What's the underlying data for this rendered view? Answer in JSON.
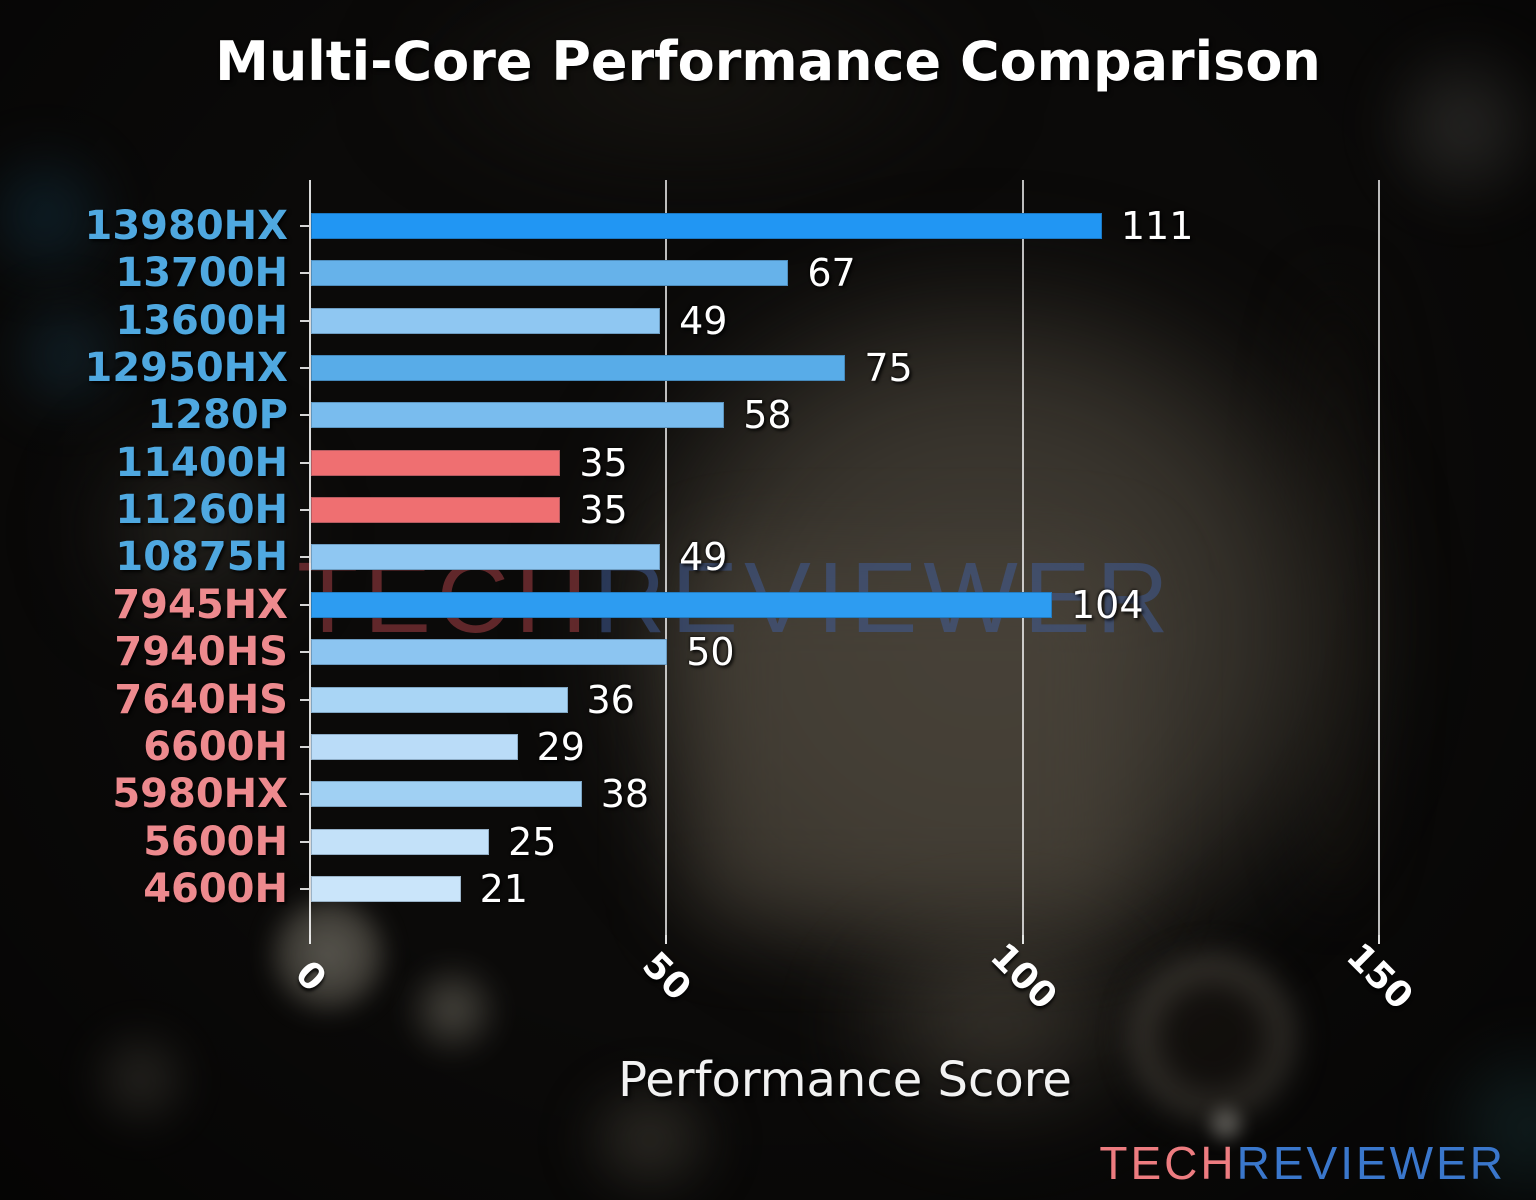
{
  "title": "Multi-Core Performance Comparison",
  "watermark": {
    "tech": "TECH",
    "reviewer": "REVIEWER"
  },
  "logo": {
    "tech": "TECH",
    "reviewer": "REVIEWER"
  },
  "colors": {
    "intel_label_blue": "#4fa8e0",
    "amd_label_pink": "#ed8a8e",
    "highlight_red_bar": "#ef6f71",
    "value_label_white": "#ffffff",
    "grid_white": "rgba(250,250,250,0.75)"
  },
  "chart_data": {
    "type": "bar",
    "orientation": "horizontal",
    "title": "Multi-Core Performance Comparison",
    "xlabel": "Performance Score",
    "ylabel": "",
    "xlim": [
      0,
      160
    ],
    "xticks": [
      0,
      50,
      100,
      150
    ],
    "xtick_rotation_deg": 45,
    "grid": "vertical",
    "legend": "none",
    "categories": [
      "13980HX",
      "13700H",
      "13600H",
      "12950HX",
      "1280P",
      "11400H",
      "11260H",
      "10875H",
      "7945HX",
      "7940HS",
      "7640HS",
      "6600H",
      "5980HX",
      "5600H",
      "4600H"
    ],
    "values": [
      111,
      67,
      49,
      75,
      58,
      35,
      35,
      49,
      104,
      50,
      36,
      29,
      38,
      25,
      21
    ],
    "bar_colors": [
      "#2196f3",
      "#66b2ea",
      "#8fc7f2",
      "#58ace8",
      "#79bcee",
      "#ef6f71",
      "#ef6f71",
      "#8fc7f2",
      "#2d9cf1",
      "#8cc5f1",
      "#a9d5f5",
      "#badcf8",
      "#a0d0f3",
      "#c3e1f9",
      "#cae5fa"
    ],
    "category_label_colors": [
      "#4fa8e0",
      "#4fa8e0",
      "#4fa8e0",
      "#4fa8e0",
      "#4fa8e0",
      "#4fa8e0",
      "#4fa8e0",
      "#4fa8e0",
      "#ed8a8e",
      "#ed8a8e",
      "#ed8a8e",
      "#ed8a8e",
      "#ed8a8e",
      "#ed8a8e",
      "#ed8a8e"
    ]
  }
}
